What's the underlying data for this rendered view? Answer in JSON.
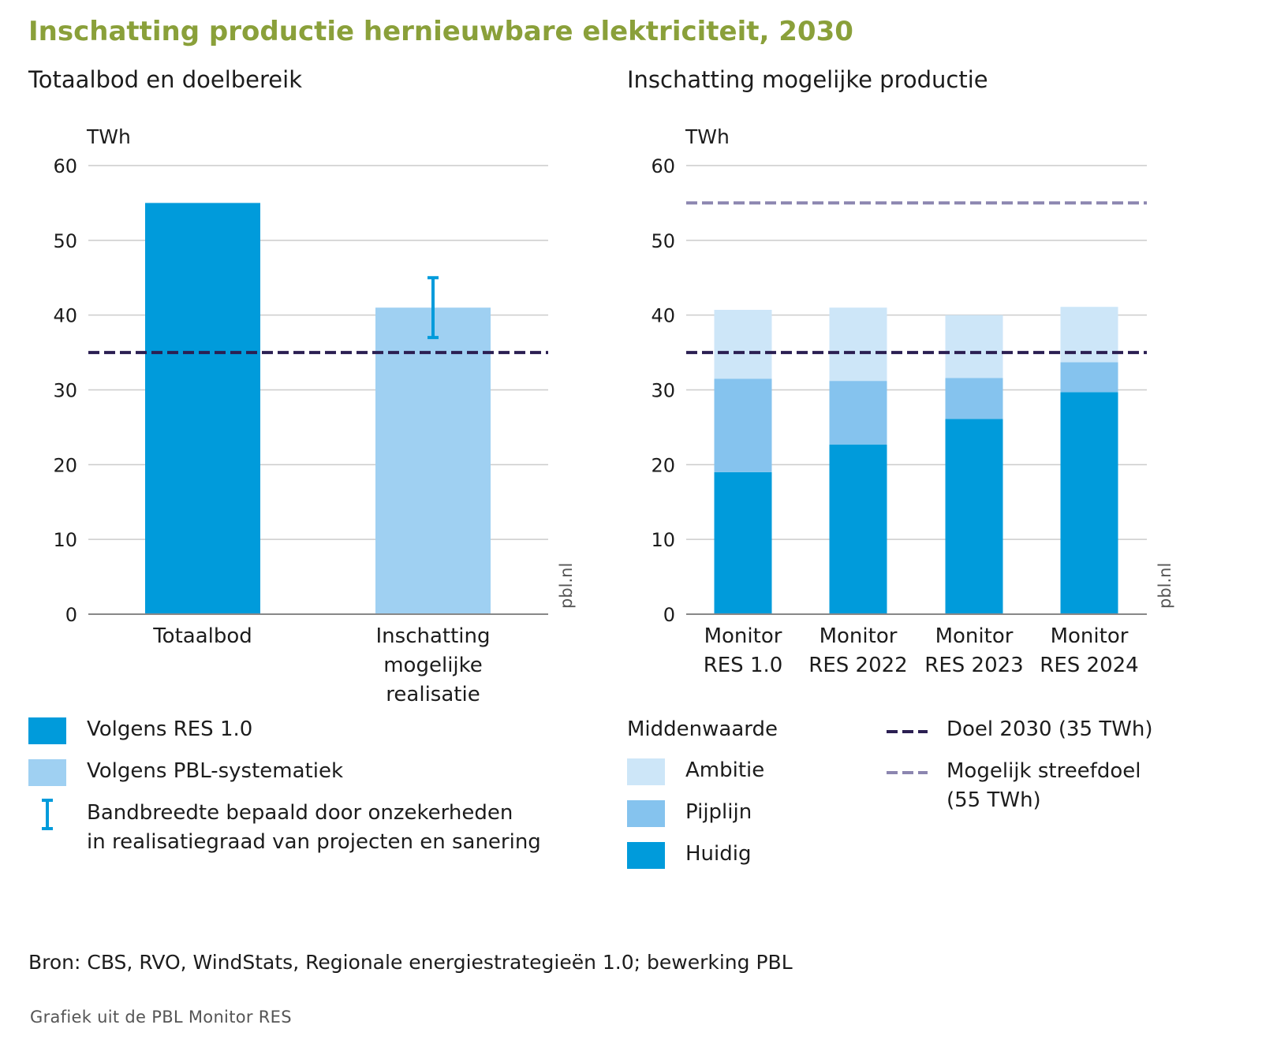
{
  "title": "Inschatting productie hernieuwbare elektriciteit, 2030",
  "colors": {
    "huidig": "#009bdb",
    "pijplijn": "#85c3ee",
    "ambitie": "#cde6f8",
    "pbl": "#9fd0f2",
    "doel_line": "#2b1f52",
    "streef_line": "#8c86b0",
    "grid": "#cccccc",
    "title": "#8aa03a"
  },
  "chart_data": [
    {
      "type": "bar",
      "title": "Totaalbod en doelbereik",
      "ylabel": "TWh",
      "ylim": [
        0,
        60
      ],
      "yticks": [
        "0",
        "10",
        "20",
        "30",
        "40",
        "50",
        "60"
      ],
      "grid": true,
      "categories": [
        "Totaalbod",
        "Inschatting mogelijke realisatie"
      ],
      "category_lines": [
        [
          "Totaalbod"
        ],
        [
          "Inschatting",
          "mogelijke",
          "realisatie"
        ]
      ],
      "series": [
        {
          "name": "Volgens RES 1.0",
          "values": [
            55,
            null
          ]
        },
        {
          "name": "Volgens PBL-systematiek",
          "values": [
            null,
            41
          ]
        }
      ],
      "error_bar": {
        "category": "Inschatting mogelijke realisatie",
        "low": 37,
        "high": 45
      },
      "reference_lines": [
        {
          "value": 35,
          "style": "dashed",
          "color": "#2b1f52"
        }
      ],
      "watermark": "pbl.nl"
    },
    {
      "type": "bar",
      "stacked": true,
      "title": "Inschatting mogelijke productie",
      "ylabel": "TWh",
      "ylim": [
        0,
        60
      ],
      "yticks": [
        "0",
        "10",
        "20",
        "30",
        "40",
        "50",
        "60"
      ],
      "grid": true,
      "categories": [
        "Monitor RES 1.0",
        "Monitor RES 2022",
        "Monitor RES 2023",
        "Monitor RES 2024"
      ],
      "category_lines": [
        [
          "Monitor",
          "RES 1.0"
        ],
        [
          "Monitor",
          "RES 2022"
        ],
        [
          "Monitor",
          "RES 2023"
        ],
        [
          "Monitor",
          "RES 2024"
        ]
      ],
      "series": [
        {
          "name": "Huidig",
          "values": [
            19,
            22.7,
            26.1,
            29.7
          ]
        },
        {
          "name": "Pijplijn",
          "values": [
            12.5,
            8.5,
            5.5,
            4.0
          ]
        },
        {
          "name": "Ambitie",
          "values": [
            9.2,
            9.8,
            8.4,
            7.4
          ]
        }
      ],
      "reference_lines": [
        {
          "value": 35,
          "style": "dashed",
          "color": "#2b1f52"
        },
        {
          "value": 55,
          "style": "dashed",
          "color": "#8c86b0"
        }
      ],
      "watermark": "pbl.nl"
    }
  ],
  "legend_left": {
    "res": "Volgens RES 1.0",
    "pbl": "Volgens PBL-systematiek",
    "band_line1": "Bandbreedte bepaald door onzekerheden",
    "band_line2": "in realisatiegraad van projecten en sanering"
  },
  "legend_right": {
    "heading": "Middenwaarde",
    "ambitie": "Ambitie",
    "pijplijn": "Pijplijn",
    "huidig": "Huidig",
    "doel": "Doel 2030 (35 TWh)",
    "streef_line1": "Mogelijk streefdoel",
    "streef_line2": "(55 TWh)"
  },
  "source": "Bron: CBS, RVO, WindStats, Regionale energiestrategieën 1.0; bewerking PBL",
  "caption": "Grafiek uit de PBL Monitor RES"
}
